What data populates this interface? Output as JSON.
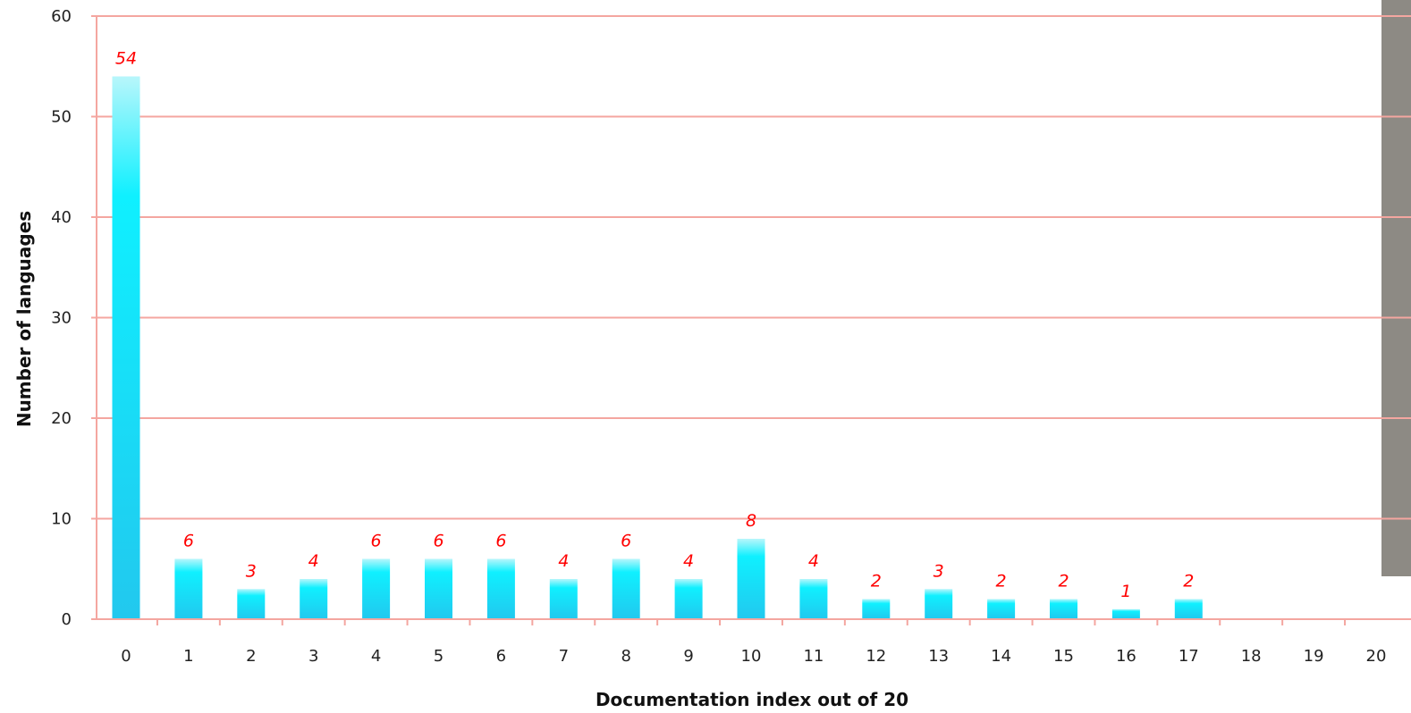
{
  "chart_data": {
    "type": "bar",
    "categories": [
      "0",
      "1",
      "2",
      "3",
      "4",
      "5",
      "6",
      "7",
      "8",
      "9",
      "10",
      "11",
      "12",
      "13",
      "14",
      "15",
      "16",
      "17",
      "18",
      "19",
      "20"
    ],
    "values": [
      54,
      6,
      3,
      4,
      6,
      6,
      6,
      4,
      6,
      4,
      8,
      4,
      2,
      3,
      2,
      2,
      1,
      2,
      0,
      0,
      0
    ],
    "data_labels": [
      "54",
      "6",
      "3",
      "4",
      "6",
      "6",
      "6",
      "4",
      "6",
      "4",
      "8",
      "4",
      "2",
      "3",
      "2",
      "2",
      "1",
      "2",
      "",
      "",
      ""
    ],
    "xlabel": "Documentation index out of 20",
    "ylabel": "Number of languages",
    "ylim": [
      0,
      60
    ],
    "yticks": [
      "0",
      "10",
      "20",
      "30",
      "40",
      "50",
      "60"
    ],
    "grid": true,
    "colors": {
      "grid": "#f4a6a0",
      "bar_top": "#b8f6fb",
      "bar_mid": "#0ff0ff",
      "bar_bottom": "#22c8ee",
      "data_label": "#ff0000"
    }
  }
}
